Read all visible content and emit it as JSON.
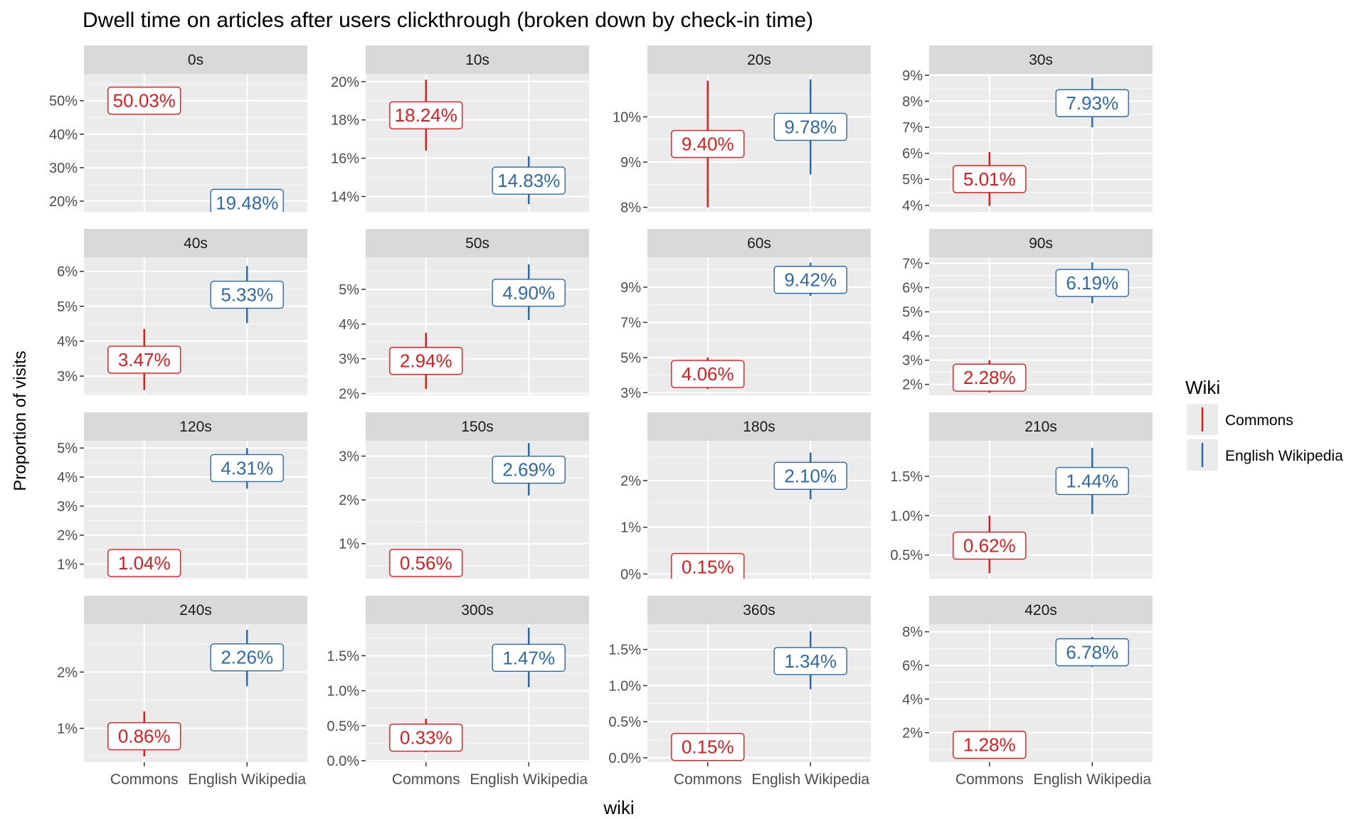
{
  "chart_data": {
    "type": "faceted-errorbar",
    "title": "Dwell time on articles after users clickthrough (broken down by check-in time)",
    "xlabel": "wiki",
    "ylabel": "Proportion of visits",
    "categories": [
      "Commons",
      "English Wikipedia"
    ],
    "legend": {
      "title": "Wiki",
      "position": "right",
      "entries": [
        {
          "name": "Commons",
          "color": "#e31a1c"
        },
        {
          "name": "English Wikipedia",
          "color": "#2c6aa8"
        }
      ]
    },
    "facets": [
      {
        "strip": "0s",
        "ylim": [
          16.8,
          58
        ],
        "yticks": [
          {
            "v": 20,
            "label": "20%"
          },
          {
            "v": 30,
            "label": "30%"
          },
          {
            "v": 40,
            "label": "40%"
          },
          {
            "v": 50,
            "label": "50%"
          }
        ],
        "points": [
          {
            "series": "Commons",
            "value": 50.03,
            "label": "50.03%",
            "low": 49.0,
            "high": 51.0
          },
          {
            "series": "English Wikipedia",
            "value": 19.48,
            "label": "19.48%",
            "low": 18.8,
            "high": 20.0
          }
        ]
      },
      {
        "strip": "10s",
        "ylim": [
          13.2,
          20.4
        ],
        "yticks": [
          {
            "v": 14,
            "label": "14%"
          },
          {
            "v": 16,
            "label": "16%"
          },
          {
            "v": 18,
            "label": "18%"
          },
          {
            "v": 20,
            "label": "20%"
          }
        ],
        "points": [
          {
            "series": "Commons",
            "value": 18.24,
            "label": "18.24%",
            "low": 16.4,
            "high": 20.1
          },
          {
            "series": "English Wikipedia",
            "value": 14.83,
            "label": "14.83%",
            "low": 13.6,
            "high": 16.1
          }
        ]
      },
      {
        "strip": "20s",
        "ylim": [
          7.9,
          10.95
        ],
        "yticks": [
          {
            "v": 8,
            "label": "8%"
          },
          {
            "v": 9,
            "label": "9%"
          },
          {
            "v": 10,
            "label": "10%"
          }
        ],
        "points": [
          {
            "series": "Commons",
            "value": 9.4,
            "label": "9.40%",
            "low": 8.0,
            "high": 10.8
          },
          {
            "series": "English Wikipedia",
            "value": 9.78,
            "label": "9.78%",
            "low": 8.73,
            "high": 10.83
          }
        ]
      },
      {
        "strip": "30s",
        "ylim": [
          3.75,
          9.05
        ],
        "yticks": [
          {
            "v": 4,
            "label": "4%"
          },
          {
            "v": 5,
            "label": "5%"
          },
          {
            "v": 6,
            "label": "6%"
          },
          {
            "v": 7,
            "label": "7%"
          },
          {
            "v": 8,
            "label": "8%"
          },
          {
            "v": 9,
            "label": "9%"
          }
        ],
        "points": [
          {
            "series": "Commons",
            "value": 5.01,
            "label": "5.01%",
            "low": 3.98,
            "high": 6.05
          },
          {
            "series": "English Wikipedia",
            "value": 7.93,
            "label": "7.93%",
            "low": 7.0,
            "high": 8.9
          }
        ]
      },
      {
        "strip": "40s",
        "ylim": [
          2.45,
          6.4
        ],
        "yticks": [
          {
            "v": 3,
            "label": "3%"
          },
          {
            "v": 4,
            "label": "4%"
          },
          {
            "v": 5,
            "label": "5%"
          },
          {
            "v": 6,
            "label": "6%"
          }
        ],
        "points": [
          {
            "series": "Commons",
            "value": 3.47,
            "label": "3.47%",
            "low": 2.6,
            "high": 4.35
          },
          {
            "series": "English Wikipedia",
            "value": 5.33,
            "label": "5.33%",
            "low": 4.52,
            "high": 6.15
          }
        ]
      },
      {
        "strip": "50s",
        "ylim": [
          1.95,
          5.92
        ],
        "yticks": [
          {
            "v": 2,
            "label": "2%"
          },
          {
            "v": 3,
            "label": "3%"
          },
          {
            "v": 4,
            "label": "4%"
          },
          {
            "v": 5,
            "label": "5%"
          }
        ],
        "points": [
          {
            "series": "Commons",
            "value": 2.94,
            "label": "2.94%",
            "low": 2.13,
            "high": 3.75
          },
          {
            "series": "English Wikipedia",
            "value": 4.9,
            "label": "4.90%",
            "low": 4.12,
            "high": 5.72
          }
        ]
      },
      {
        "strip": "60s",
        "ylim": [
          2.85,
          10.7
        ],
        "yticks": [
          {
            "v": 3,
            "label": "3%"
          },
          {
            "v": 5,
            "label": "5%"
          },
          {
            "v": 7,
            "label": "7%"
          },
          {
            "v": 9,
            "label": "9%"
          }
        ],
        "points": [
          {
            "series": "Commons",
            "value": 4.06,
            "label": "4.06%",
            "low": 3.2,
            "high": 5.0
          },
          {
            "series": "English Wikipedia",
            "value": 9.42,
            "label": "9.42%",
            "low": 8.5,
            "high": 10.4
          }
        ]
      },
      {
        "strip": "90s",
        "ylim": [
          1.55,
          7.25
        ],
        "yticks": [
          {
            "v": 2,
            "label": "2%"
          },
          {
            "v": 3,
            "label": "3%"
          },
          {
            "v": 4,
            "label": "4%"
          },
          {
            "v": 5,
            "label": "5%"
          },
          {
            "v": 6,
            "label": "6%"
          },
          {
            "v": 7,
            "label": "7%"
          }
        ],
        "points": [
          {
            "series": "Commons",
            "value": 2.28,
            "label": "2.28%",
            "low": 1.65,
            "high": 3.0
          },
          {
            "series": "English Wikipedia",
            "value": 6.19,
            "label": "6.19%",
            "low": 5.35,
            "high": 7.05
          }
        ]
      },
      {
        "strip": "120s",
        "ylim": [
          0.5,
          5.25
        ],
        "yticks": [
          {
            "v": 1,
            "label": "1%"
          },
          {
            "v": 2,
            "label": "2%"
          },
          {
            "v": 3,
            "label": "3%"
          },
          {
            "v": 4,
            "label": "4%"
          },
          {
            "v": 5,
            "label": "5%"
          }
        ],
        "points": [
          {
            "series": "Commons",
            "value": 1.04,
            "label": "1.04%",
            "low": 0.8,
            "high": 1.3
          },
          {
            "series": "English Wikipedia",
            "value": 4.31,
            "label": "4.31%",
            "low": 3.6,
            "high": 5.0
          }
        ]
      },
      {
        "strip": "150s",
        "ylim": [
          0.2,
          3.35
        ],
        "yticks": [
          {
            "v": 1,
            "label": "1%"
          },
          {
            "v": 2,
            "label": "2%"
          },
          {
            "v": 3,
            "label": "3%"
          }
        ],
        "points": [
          {
            "series": "Commons",
            "value": 0.56,
            "label": "0.56%",
            "low": 0.35,
            "high": 0.8
          },
          {
            "series": "English Wikipedia",
            "value": 2.69,
            "label": "2.69%",
            "low": 2.1,
            "high": 3.3
          }
        ]
      },
      {
        "strip": "180s",
        "ylim": [
          -0.1,
          2.85
        ],
        "yticks": [
          {
            "v": 0,
            "label": "0%"
          },
          {
            "v": 1,
            "label": "1%"
          },
          {
            "v": 2,
            "label": "2%"
          }
        ],
        "points": [
          {
            "series": "Commons",
            "value": 0.15,
            "label": "0.15%",
            "low": 0.0,
            "high": 0.35
          },
          {
            "series": "English Wikipedia",
            "value": 2.1,
            "label": "2.10%",
            "low": 1.6,
            "high": 2.6
          }
        ]
      },
      {
        "strip": "210s",
        "ylim": [
          0.2,
          1.95
        ],
        "yticks": [
          {
            "v": 0.5,
            "label": "0.5%"
          },
          {
            "v": 1.0,
            "label": "1.0%"
          },
          {
            "v": 1.5,
            "label": "1.5%"
          }
        ],
        "points": [
          {
            "series": "Commons",
            "value": 0.62,
            "label": "0.62%",
            "low": 0.27,
            "high": 1.0
          },
          {
            "series": "English Wikipedia",
            "value": 1.44,
            "label": "1.44%",
            "low": 1.02,
            "high": 1.86
          }
        ]
      },
      {
        "strip": "240s",
        "ylim": [
          0.4,
          2.85
        ],
        "yticks": [
          {
            "v": 1,
            "label": "1%"
          },
          {
            "v": 2,
            "label": "2%"
          }
        ],
        "points": [
          {
            "series": "Commons",
            "value": 0.86,
            "label": "0.86%",
            "low": 0.5,
            "high": 1.3
          },
          {
            "series": "English Wikipedia",
            "value": 2.26,
            "label": "2.26%",
            "low": 1.75,
            "high": 2.75
          }
        ]
      },
      {
        "strip": "300s",
        "ylim": [
          -0.02,
          1.95
        ],
        "yticks": [
          {
            "v": 0,
            "label": "0.0%"
          },
          {
            "v": 0.5,
            "label": "0.5%"
          },
          {
            "v": 1.0,
            "label": "1.0%"
          },
          {
            "v": 1.5,
            "label": "1.5%"
          }
        ],
        "points": [
          {
            "series": "Commons",
            "value": 0.33,
            "label": "0.33%",
            "low": 0.12,
            "high": 0.6
          },
          {
            "series": "English Wikipedia",
            "value": 1.47,
            "label": "1.47%",
            "low": 1.05,
            "high": 1.9
          }
        ]
      },
      {
        "strip": "360s",
        "ylim": [
          -0.06,
          1.85
        ],
        "yticks": [
          {
            "v": 0,
            "label": "0.0%"
          },
          {
            "v": 0.5,
            "label": "0.5%"
          },
          {
            "v": 1.0,
            "label": "1.0%"
          },
          {
            "v": 1.5,
            "label": "1.5%"
          }
        ],
        "points": [
          {
            "series": "Commons",
            "value": 0.15,
            "label": "0.15%",
            "low": 0.03,
            "high": 0.32
          },
          {
            "series": "English Wikipedia",
            "value": 1.34,
            "label": "1.34%",
            "low": 0.95,
            "high": 1.75
          }
        ]
      },
      {
        "strip": "420s",
        "ylim": [
          0.25,
          8.45
        ],
        "yticks": [
          {
            "v": 2,
            "label": "2%"
          },
          {
            "v": 4,
            "label": "4%"
          },
          {
            "v": 6,
            "label": "6%"
          },
          {
            "v": 8,
            "label": "8%"
          }
        ],
        "points": [
          {
            "series": "Commons",
            "value": 1.28,
            "label": "1.28%",
            "low": 0.9,
            "high": 1.7
          },
          {
            "series": "English Wikipedia",
            "value": 6.78,
            "label": "6.78%",
            "low": 5.9,
            "high": 7.7
          }
        ]
      }
    ]
  }
}
